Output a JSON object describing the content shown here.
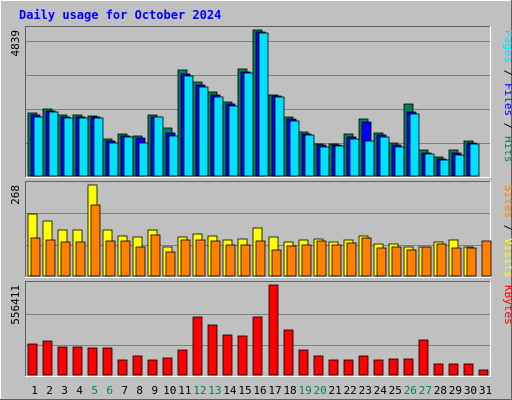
{
  "chart_data": {
    "type": "bar",
    "title": "Daily usage for October 2024",
    "categories": [
      "1",
      "2",
      "3",
      "4",
      "5",
      "6",
      "7",
      "8",
      "9",
      "10",
      "11",
      "12",
      "13",
      "14",
      "15",
      "16",
      "17",
      "18",
      "19",
      "20",
      "21",
      "22",
      "23",
      "24",
      "25",
      "26",
      "27",
      "28",
      "29",
      "30",
      "31"
    ],
    "weekend_days": [
      "5",
      "6",
      "12",
      "13",
      "19",
      "20",
      "26",
      "27"
    ],
    "panels": [
      {
        "id": "pages-files-hits",
        "ymax": 4839,
        "ymax_label": "4839",
        "right_label_parts": [
          "Pages",
          " / ",
          "Files",
          " / ",
          "Hits"
        ],
        "series": [
          {
            "name": "Hits",
            "color": "#00805c",
            "values": [
              2100,
              2230,
              2020,
              2020,
              2000,
              1210,
              1400,
              1310,
              2020,
              1580,
              3510,
              3130,
              2770,
              2460,
              3530,
              4839,
              2700,
              1950,
              1470,
              1070,
              1070,
              1380,
              1880,
              1420,
              1080,
              2400,
              860,
              630,
              860,
              1150,
              0
            ]
          },
          {
            "name": "Files",
            "color": "#0000ff",
            "values": [
              2020,
              2160,
              1960,
              1960,
              1960,
              1160,
              1340,
              1250,
              1960,
              1420,
              3390,
              3010,
              2690,
              2370,
              3460,
              4760,
              2640,
              1890,
              1400,
              1020,
              1020,
              1300,
              1790,
              1350,
              1020,
              2120,
              770,
              560,
              750,
              1080,
              0
            ]
          },
          {
            "name": "Pages",
            "color": "#00e0ff",
            "values": [
              1960,
              2110,
              1920,
              1920,
              1910,
              1080,
              1300,
              1110,
              1940,
              1340,
              3330,
              2940,
              2630,
              2310,
              3430,
              4730,
              2610,
              1830,
              1360,
              960,
              980,
              1230,
              1170,
              1280,
              950,
              2060,
              720,
              530,
              700,
              1050,
              0
            ]
          }
        ]
      },
      {
        "id": "visits-sites",
        "ymax": 268,
        "ymax_label": "268",
        "right_label_parts": [
          "Sites",
          " / ",
          "Visits"
        ],
        "series": [
          {
            "name": "Visits",
            "color": "#ffff00",
            "values": [
              183,
              163,
              134,
              134,
              268,
              134,
              118,
              114,
              134,
              85,
              114,
              123,
              118,
              105,
              110,
              142,
              114,
              99,
              105,
              109,
              99,
              107,
              118,
              93,
              94,
              85,
              85,
              99,
              105,
              85,
              0
            ]
          },
          {
            "name": "Sites",
            "color": "#ff8000",
            "values": [
              112,
              105,
              100,
              100,
              208,
              104,
              104,
              86,
              121,
              71,
              105,
              107,
              104,
              90,
              90,
              102,
              77,
              87,
              90,
              103,
              92,
              96,
              112,
              83,
              84,
              78,
              84,
              93,
              82,
              82,
              104
            ]
          }
        ]
      },
      {
        "id": "kbytes",
        "ymax": 556411,
        "ymax_label": "556411",
        "right_label_parts": [
          "KBytes"
        ],
        "series": [
          {
            "name": "KBytes",
            "color": "#ff0000",
            "values": [
              190000,
              210000,
              175000,
              175000,
              168000,
              165000,
              90000,
              115000,
              90000,
              105000,
              155000,
              360000,
              310000,
              245000,
              240000,
              360000,
              556411,
              280000,
              155000,
              115000,
              90000,
              90000,
              115000,
              95000,
              100000,
              100000,
              215000,
              65000,
              65000,
              70000,
              30000
            ]
          }
        ]
      }
    ],
    "colors": {
      "background": "#c0c0c0",
      "title": "#0000ff",
      "weekday_label": "#000000",
      "weekend_label": "#00805c",
      "gridline": "#808080"
    }
  }
}
